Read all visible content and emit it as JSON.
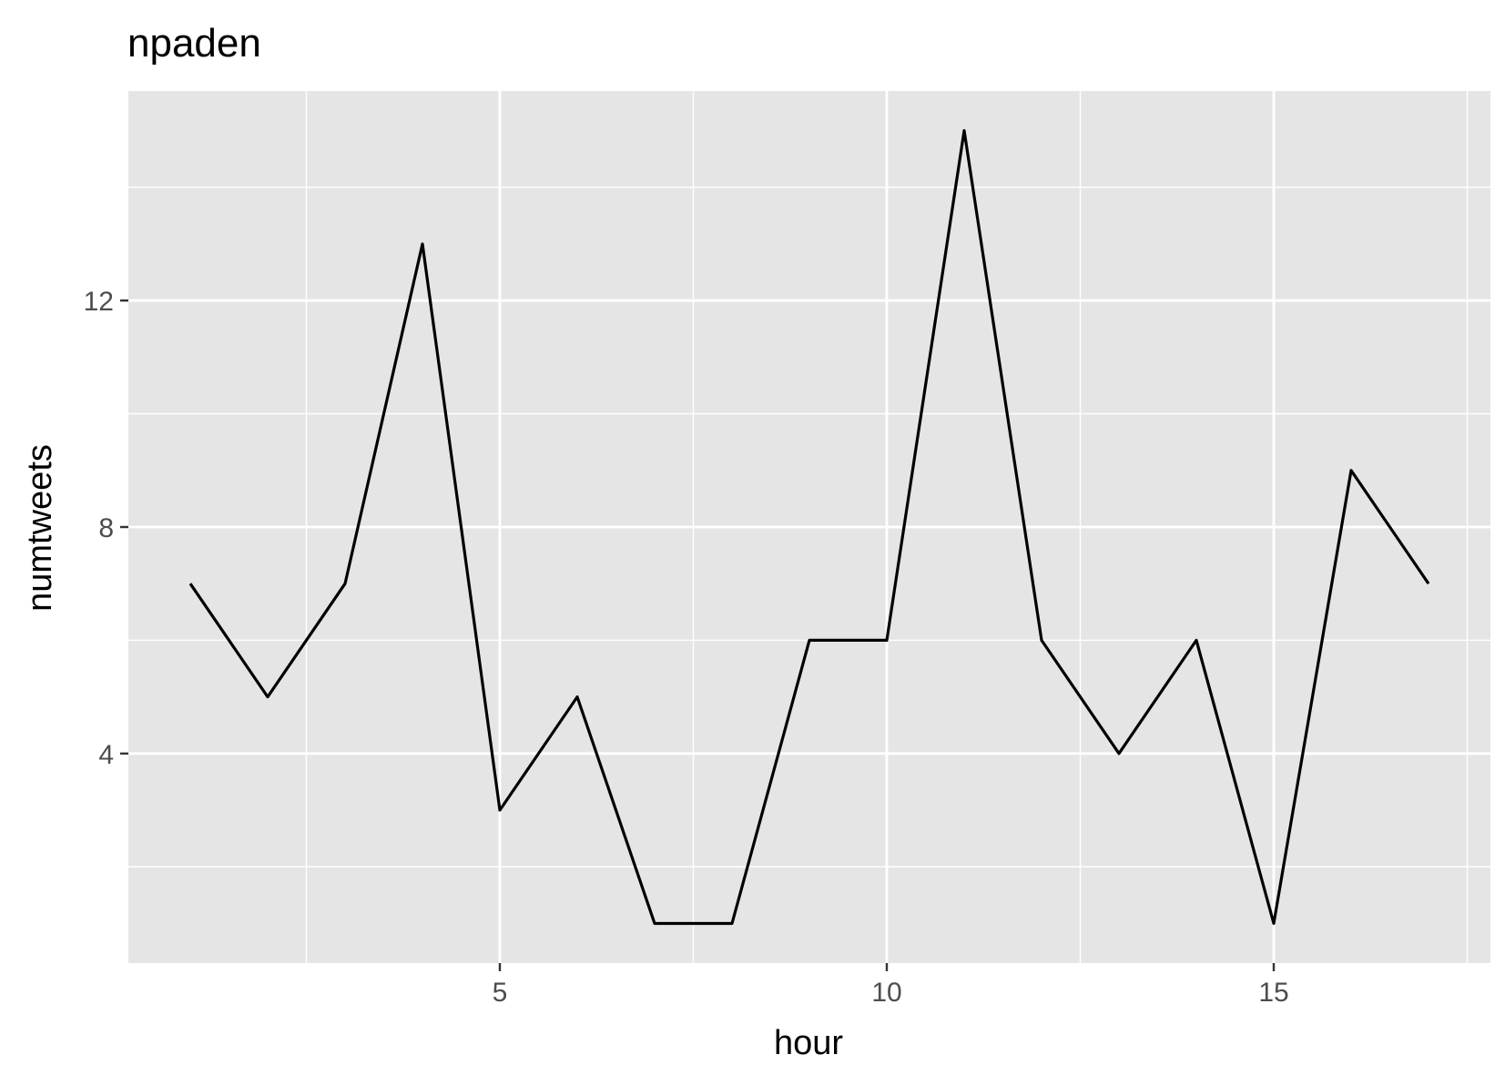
{
  "chart_data": {
    "type": "line",
    "title": "npaden",
    "xlabel": "hour",
    "ylabel": "numtweets",
    "xlim": [
      0.2,
      17.8
    ],
    "ylim": [
      0.3,
      15.7
    ],
    "x_ticks": [
      5,
      10,
      15
    ],
    "x_tick_labels": [
      "5",
      "10",
      "15"
    ],
    "y_ticks": [
      4,
      8,
      12
    ],
    "y_tick_labels": [
      "4",
      "8",
      "12"
    ],
    "grid": true,
    "series": [
      {
        "x": [
          1,
          2,
          3,
          4,
          5,
          6,
          7,
          8,
          9,
          10,
          11,
          12,
          13,
          14,
          15,
          16,
          17
        ],
        "y": [
          7,
          5,
          7,
          13,
          3,
          5,
          1,
          1,
          6,
          6,
          15,
          6,
          4,
          6,
          1,
          9,
          7
        ]
      }
    ]
  },
  "colors": {
    "panel_background": "#e5e5e5",
    "grid": "#ffffff",
    "line": "#000000",
    "tick_text": "#4d4d4d",
    "axis_text": "#000000"
  }
}
